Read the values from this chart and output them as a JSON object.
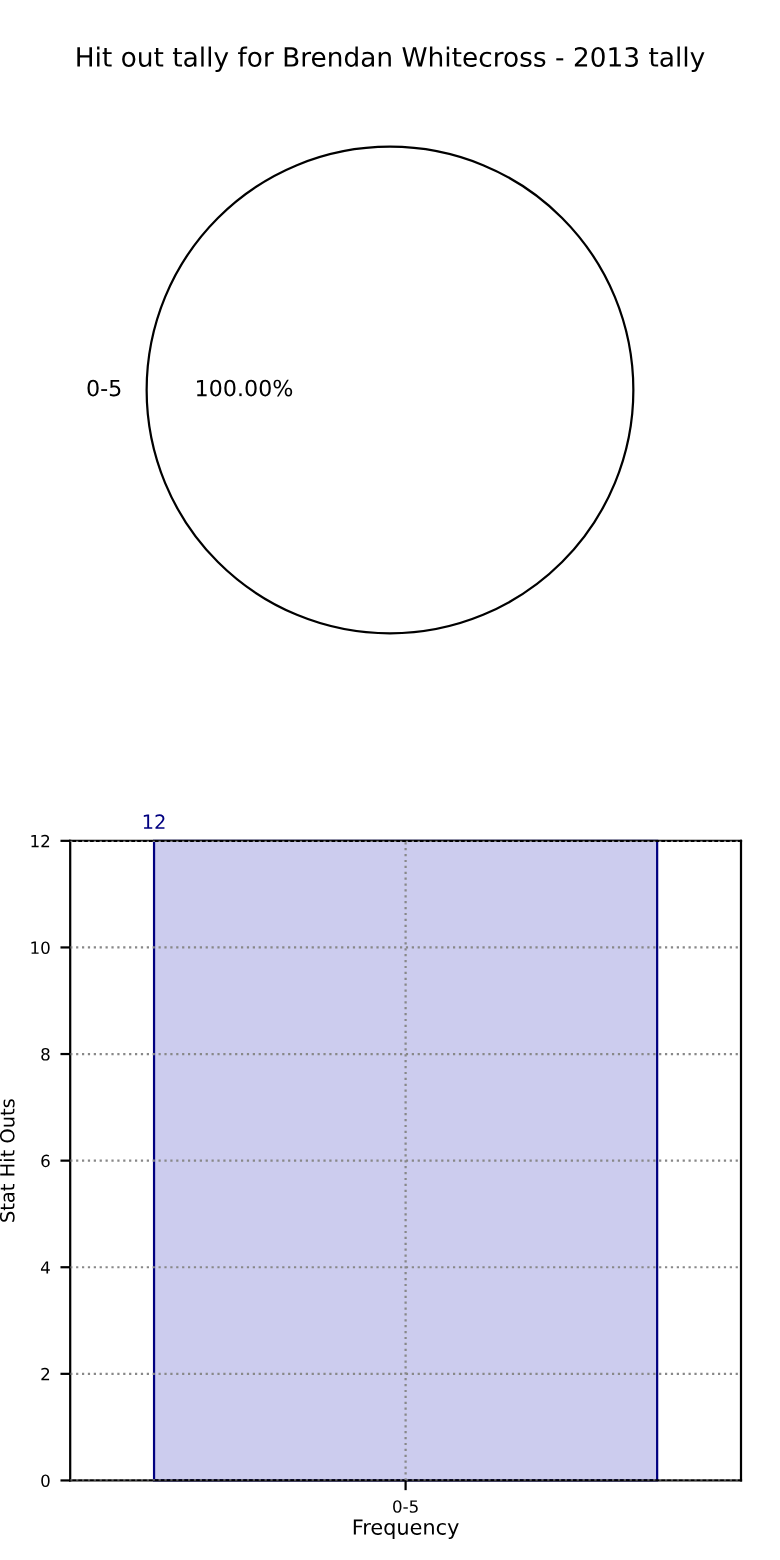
{
  "chart_data": [
    {
      "type": "pie",
      "title": "Hit out tally for Brendan Whitecross - 2013 tally",
      "categories": [
        "0-5"
      ],
      "values": [
        100
      ],
      "colors": [
        "#ffffff"
      ],
      "value_labels": [
        "100.00%"
      ]
    },
    {
      "type": "bar",
      "categories": [
        "0-5"
      ],
      "values": [
        12
      ],
      "color": "#ccccee",
      "ylabel": "Stat Hit Outs",
      "xlabel": "Frequency",
      "ylim": [
        0,
        12
      ],
      "yticks": [
        0,
        2,
        4,
        6,
        8,
        10,
        12
      ],
      "grid": true,
      "data_labels": true
    }
  ]
}
